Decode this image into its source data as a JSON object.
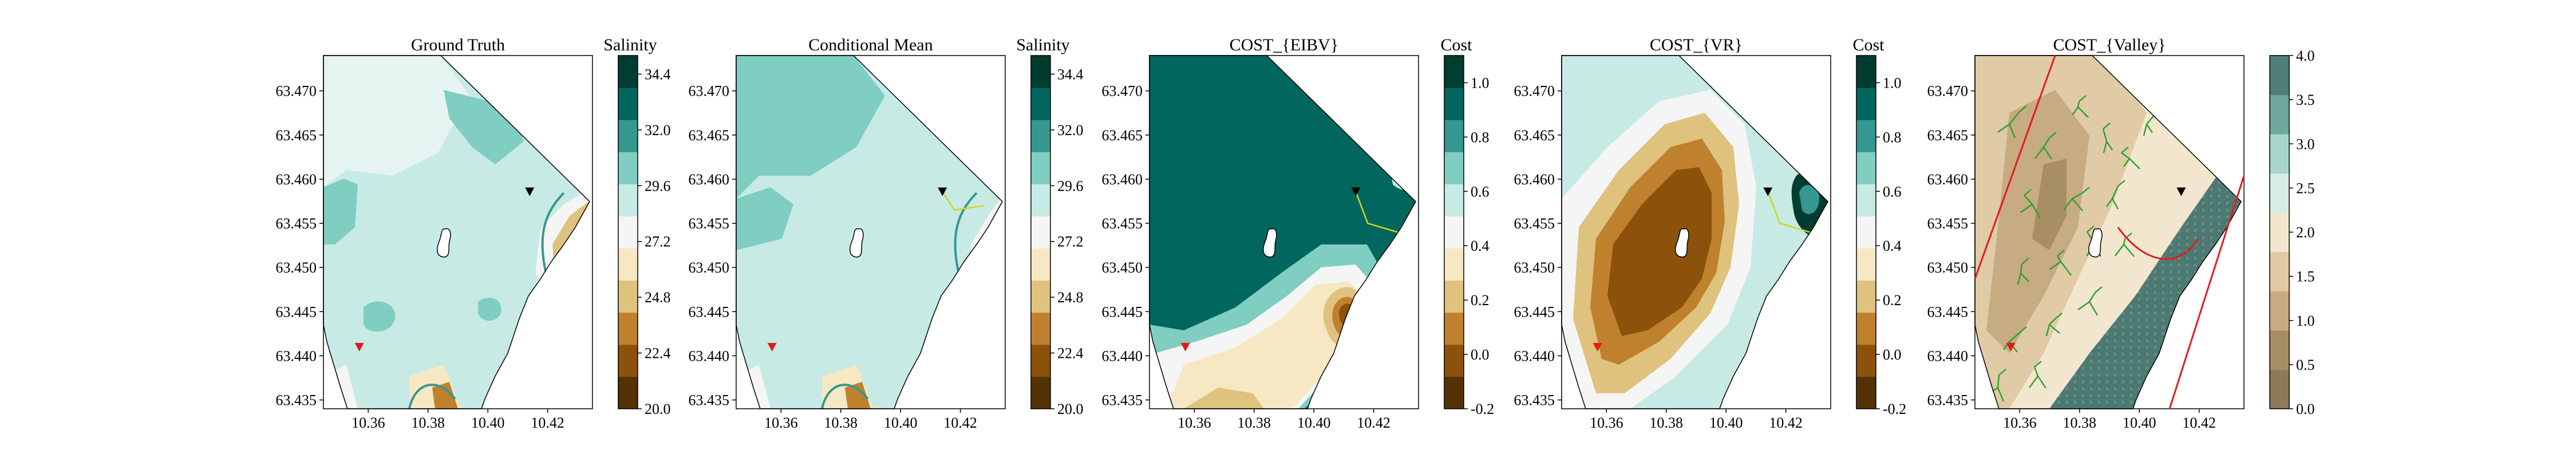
{
  "figure": {
    "background": "#ffffff"
  },
  "chart_data": [
    {
      "type": "heatmap",
      "title": "Ground Truth",
      "colorbar_label": "Salinity",
      "colorbar_ticks": [
        "20.0",
        "22.4",
        "24.8",
        "27.2",
        "29.6",
        "32.0",
        "34.4"
      ],
      "colorbar_range": [
        20.0,
        35.2
      ],
      "colormap": [
        "#543005",
        "#8c510a",
        "#bf812d",
        "#dfc27d",
        "#f6e8c3",
        "#f5f5f5",
        "#c7eae5",
        "#80cdc1",
        "#35978f",
        "#01665e",
        "#003c30"
      ],
      "xlim": [
        10.345,
        10.435
      ],
      "ylim": [
        63.434,
        63.474
      ],
      "xticks": [
        "10.36",
        "10.38",
        "10.40",
        "10.42"
      ],
      "yticks": [
        "63.435",
        "63.440",
        "63.445",
        "63.450",
        "63.455",
        "63.460",
        "63.465",
        "63.470"
      ],
      "markers": [
        {
          "label": "start",
          "x": 10.357,
          "y": 63.441,
          "color": "#e41a1c",
          "shape": "triangle-down"
        },
        {
          "label": "current",
          "x": 10.414,
          "y": 63.4586,
          "color": "#000000",
          "shape": "triangle-down"
        }
      ]
    },
    {
      "type": "heatmap",
      "title": "Conditional Mean",
      "colorbar_label": "Salinity",
      "colorbar_ticks": [
        "20.0",
        "22.4",
        "24.8",
        "27.2",
        "29.6",
        "32.0",
        "34.4"
      ],
      "colorbar_range": [
        20.0,
        35.2
      ],
      "colormap": [
        "#543005",
        "#8c510a",
        "#bf812d",
        "#dfc27d",
        "#f6e8c3",
        "#f5f5f5",
        "#c7eae5",
        "#80cdc1",
        "#35978f",
        "#01665e",
        "#003c30"
      ],
      "xlim": [
        10.345,
        10.435
      ],
      "ylim": [
        63.434,
        63.474
      ],
      "xticks": [
        "10.36",
        "10.38",
        "10.40",
        "10.42"
      ],
      "yticks": [
        "63.435",
        "63.440",
        "63.445",
        "63.450",
        "63.455",
        "63.460",
        "63.465",
        "63.470"
      ],
      "markers": [
        {
          "label": "start",
          "x": 10.357,
          "y": 63.441,
          "color": "#e41a1c",
          "shape": "triangle-down"
        },
        {
          "label": "current",
          "x": 10.414,
          "y": 63.4586,
          "color": "#000000",
          "shape": "triangle-down"
        }
      ],
      "path": {
        "color": "#d4d41a",
        "points": [
          [
            10.414,
            63.4586
          ],
          [
            10.418,
            63.4565
          ],
          [
            10.428,
            63.457
          ]
        ]
      }
    },
    {
      "type": "heatmap",
      "title": "COST_{EIBV}",
      "colorbar_label": "Cost",
      "colorbar_ticks": [
        "-0.2",
        "0.0",
        "0.2",
        "0.4",
        "0.6",
        "0.8",
        "1.0"
      ],
      "colorbar_range": [
        -0.2,
        1.1
      ],
      "colormap": [
        "#543005",
        "#8c510a",
        "#bf812d",
        "#dfc27d",
        "#f6e8c3",
        "#f5f5f5",
        "#c7eae5",
        "#80cdc1",
        "#35978f",
        "#01665e",
        "#003c30"
      ],
      "xlim": [
        10.345,
        10.435
      ],
      "ylim": [
        63.434,
        63.474
      ],
      "xticks": [
        "10.36",
        "10.38",
        "10.40",
        "10.42"
      ],
      "yticks": [
        "63.435",
        "63.440",
        "63.445",
        "63.450",
        "63.455",
        "63.460",
        "63.465",
        "63.470"
      ],
      "markers": [
        {
          "label": "start",
          "x": 10.357,
          "y": 63.441,
          "color": "#e41a1c",
          "shape": "triangle-down"
        },
        {
          "label": "current",
          "x": 10.414,
          "y": 63.4586,
          "color": "#000000",
          "shape": "triangle-down"
        }
      ],
      "path": {
        "color": "#d4d41a",
        "points": [
          [
            10.414,
            63.4586
          ],
          [
            10.418,
            63.455
          ],
          [
            10.428,
            63.454
          ]
        ]
      }
    },
    {
      "type": "heatmap",
      "title": "COST_{VR}",
      "colorbar_label": "Cost",
      "colorbar_ticks": [
        "-0.2",
        "0.0",
        "0.2",
        "0.4",
        "0.6",
        "0.8",
        "1.0"
      ],
      "colorbar_range": [
        -0.2,
        1.1
      ],
      "colormap": [
        "#543005",
        "#8c510a",
        "#bf812d",
        "#dfc27d",
        "#f6e8c3",
        "#f5f5f5",
        "#c7eae5",
        "#80cdc1",
        "#35978f",
        "#01665e",
        "#003c30"
      ],
      "xlim": [
        10.345,
        10.435
      ],
      "ylim": [
        63.434,
        63.474
      ],
      "xticks": [
        "10.36",
        "10.38",
        "10.40",
        "10.42"
      ],
      "yticks": [
        "63.435",
        "63.440",
        "63.445",
        "63.450",
        "63.455",
        "63.460",
        "63.465",
        "63.470"
      ],
      "markers": [
        {
          "label": "start",
          "x": 10.357,
          "y": 63.441,
          "color": "#e41a1c",
          "shape": "triangle-down"
        },
        {
          "label": "current",
          "x": 10.414,
          "y": 63.4586,
          "color": "#000000",
          "shape": "triangle-down"
        }
      ],
      "path": {
        "color": "#d4d41a",
        "points": [
          [
            10.414,
            63.4586
          ],
          [
            10.418,
            63.455
          ],
          [
            10.428,
            63.454
          ]
        ]
      }
    },
    {
      "type": "heatmap",
      "title": "COST_{Valley}",
      "colorbar_label": "",
      "colorbar_ticks": [
        "0.0",
        "0.5",
        "1.0",
        "1.5",
        "2.0",
        "2.5",
        "3.0",
        "3.5",
        "4.0"
      ],
      "colorbar_range": [
        0.0,
        4.0
      ],
      "colormap": [
        "#8c7a5b",
        "#a88f63",
        "#c7ab82",
        "#e0cba6",
        "#f2e6cf",
        "#d5ece7",
        "#a9d6cc",
        "#6fa89c",
        "#4f7f76"
      ],
      "xlim": [
        10.345,
        10.435
      ],
      "ylim": [
        63.434,
        63.474
      ],
      "xticks": [
        "10.36",
        "10.38",
        "10.40",
        "10.42"
      ],
      "yticks": [
        "63.435",
        "63.440",
        "63.445",
        "63.450",
        "63.455",
        "63.460",
        "63.465",
        "63.470"
      ],
      "markers": [
        {
          "label": "start",
          "x": 10.357,
          "y": 63.441,
          "color": "#e41a1c",
          "shape": "triangle-down"
        },
        {
          "label": "current",
          "x": 10.414,
          "y": 63.4586,
          "color": "#000000",
          "shape": "triangle-down"
        }
      ],
      "overlay": {
        "tree_color": "#2ca02c",
        "boundary_color": "#e41a1c"
      }
    }
  ]
}
